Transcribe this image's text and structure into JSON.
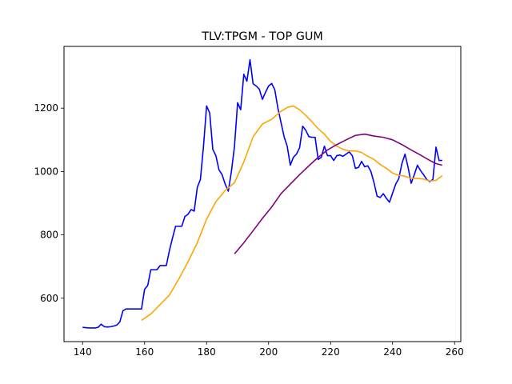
{
  "chart_data": {
    "type": "line",
    "title": "TLV:TPGM - TOP GUM",
    "xlabel": "",
    "ylabel": "",
    "xlim": [
      134,
      262
    ],
    "ylim": [
      463,
      1395
    ],
    "xticks": [
      140,
      160,
      180,
      200,
      220,
      240,
      260
    ],
    "yticks": [
      600,
      800,
      1000,
      1200
    ],
    "grid": false,
    "series": [
      {
        "color": "#0000ff",
        "x": [
          140,
          142,
          144,
          145,
          146,
          147,
          148,
          149,
          150,
          151,
          152,
          153,
          154,
          155,
          156,
          157,
          158,
          159,
          160,
          161,
          162,
          163,
          164,
          165,
          166,
          167,
          168,
          169,
          170,
          171,
          172,
          173,
          174,
          175,
          176,
          177,
          178,
          179,
          180,
          181,
          182,
          183,
          184,
          185,
          186,
          187,
          188,
          189,
          190,
          191,
          192,
          193,
          194,
          195,
          196,
          197,
          198,
          199,
          200,
          201,
          202,
          203,
          204,
          205,
          206,
          207,
          208,
          209,
          210,
          211,
          212,
          213,
          214,
          215,
          216,
          217,
          218,
          219,
          220,
          221,
          222,
          223,
          224,
          225,
          226,
          227,
          228,
          229,
          230,
          231,
          232,
          233,
          234,
          235,
          236,
          237,
          238,
          239,
          240,
          241,
          242,
          243,
          244,
          245,
          246,
          247,
          248,
          249,
          250,
          251,
          252,
          253,
          254,
          255,
          256
        ],
        "y": [
          508,
          506,
          506,
          508,
          518,
          510,
          509,
          510,
          512,
          515,
          525,
          560,
          566,
          566,
          566,
          566,
          566,
          566,
          628,
          640,
          690,
          690,
          690,
          703,
          703,
          703,
          750,
          790,
          827,
          827,
          827,
          858,
          865,
          880,
          875,
          950,
          975,
          1080,
          1207,
          1185,
          1070,
          1050,
          1005,
          990,
          960,
          938,
          1000,
          1080,
          1217,
          1195,
          1307,
          1285,
          1353,
          1277,
          1270,
          1260,
          1228,
          1250,
          1270,
          1278,
          1258,
          1200,
          1155,
          1110,
          1080,
          1020,
          1045,
          1055,
          1075,
          1143,
          1130,
          1110,
          1108,
          1108,
          1038,
          1045,
          1080,
          1050,
          1050,
          1035,
          1050,
          1052,
          1048,
          1055,
          1062,
          1050,
          1010,
          1013,
          1032,
          1015,
          1018,
          1000,
          965,
          922,
          918,
          930,
          915,
          903,
          932,
          960,
          978,
          1025,
          1055,
          1013,
          963,
          990,
          1020,
          1003,
          990,
          975,
          968,
          975,
          1077,
          1035,
          1035
        ]
      },
      {
        "color": "#ffa500",
        "x": [
          159,
          162,
          165,
          168,
          171,
          174,
          177,
          180,
          183,
          186,
          189,
          192,
          195,
          198,
          201,
          204,
          206,
          208,
          210,
          212,
          214,
          216,
          218,
          220,
          222,
          224,
          226,
          228,
          230,
          232,
          234,
          236,
          238,
          240,
          242,
          244,
          246,
          248,
          250,
          252,
          254,
          256
        ],
        "y": [
          530,
          550,
          580,
          610,
          660,
          715,
          775,
          850,
          905,
          940,
          965,
          1030,
          1110,
          1150,
          1165,
          1190,
          1202,
          1207,
          1195,
          1177,
          1157,
          1135,
          1118,
          1095,
          1080,
          1070,
          1065,
          1065,
          1060,
          1048,
          1038,
          1022,
          1010,
          995,
          988,
          985,
          978,
          978,
          976,
          970,
          972,
          987
        ]
      },
      {
        "color": "#800080",
        "x": [
          189,
          192,
          195,
          198,
          201,
          204,
          207,
          210,
          213,
          216,
          219,
          222,
          225,
          228,
          231,
          234,
          237,
          240,
          243,
          246,
          249,
          252,
          254,
          256
        ],
        "y": [
          740,
          775,
          813,
          852,
          888,
          930,
          960,
          990,
          1018,
          1045,
          1068,
          1085,
          1100,
          1114,
          1118,
          1112,
          1108,
          1100,
          1085,
          1068,
          1052,
          1035,
          1025,
          1020
        ]
      }
    ]
  }
}
